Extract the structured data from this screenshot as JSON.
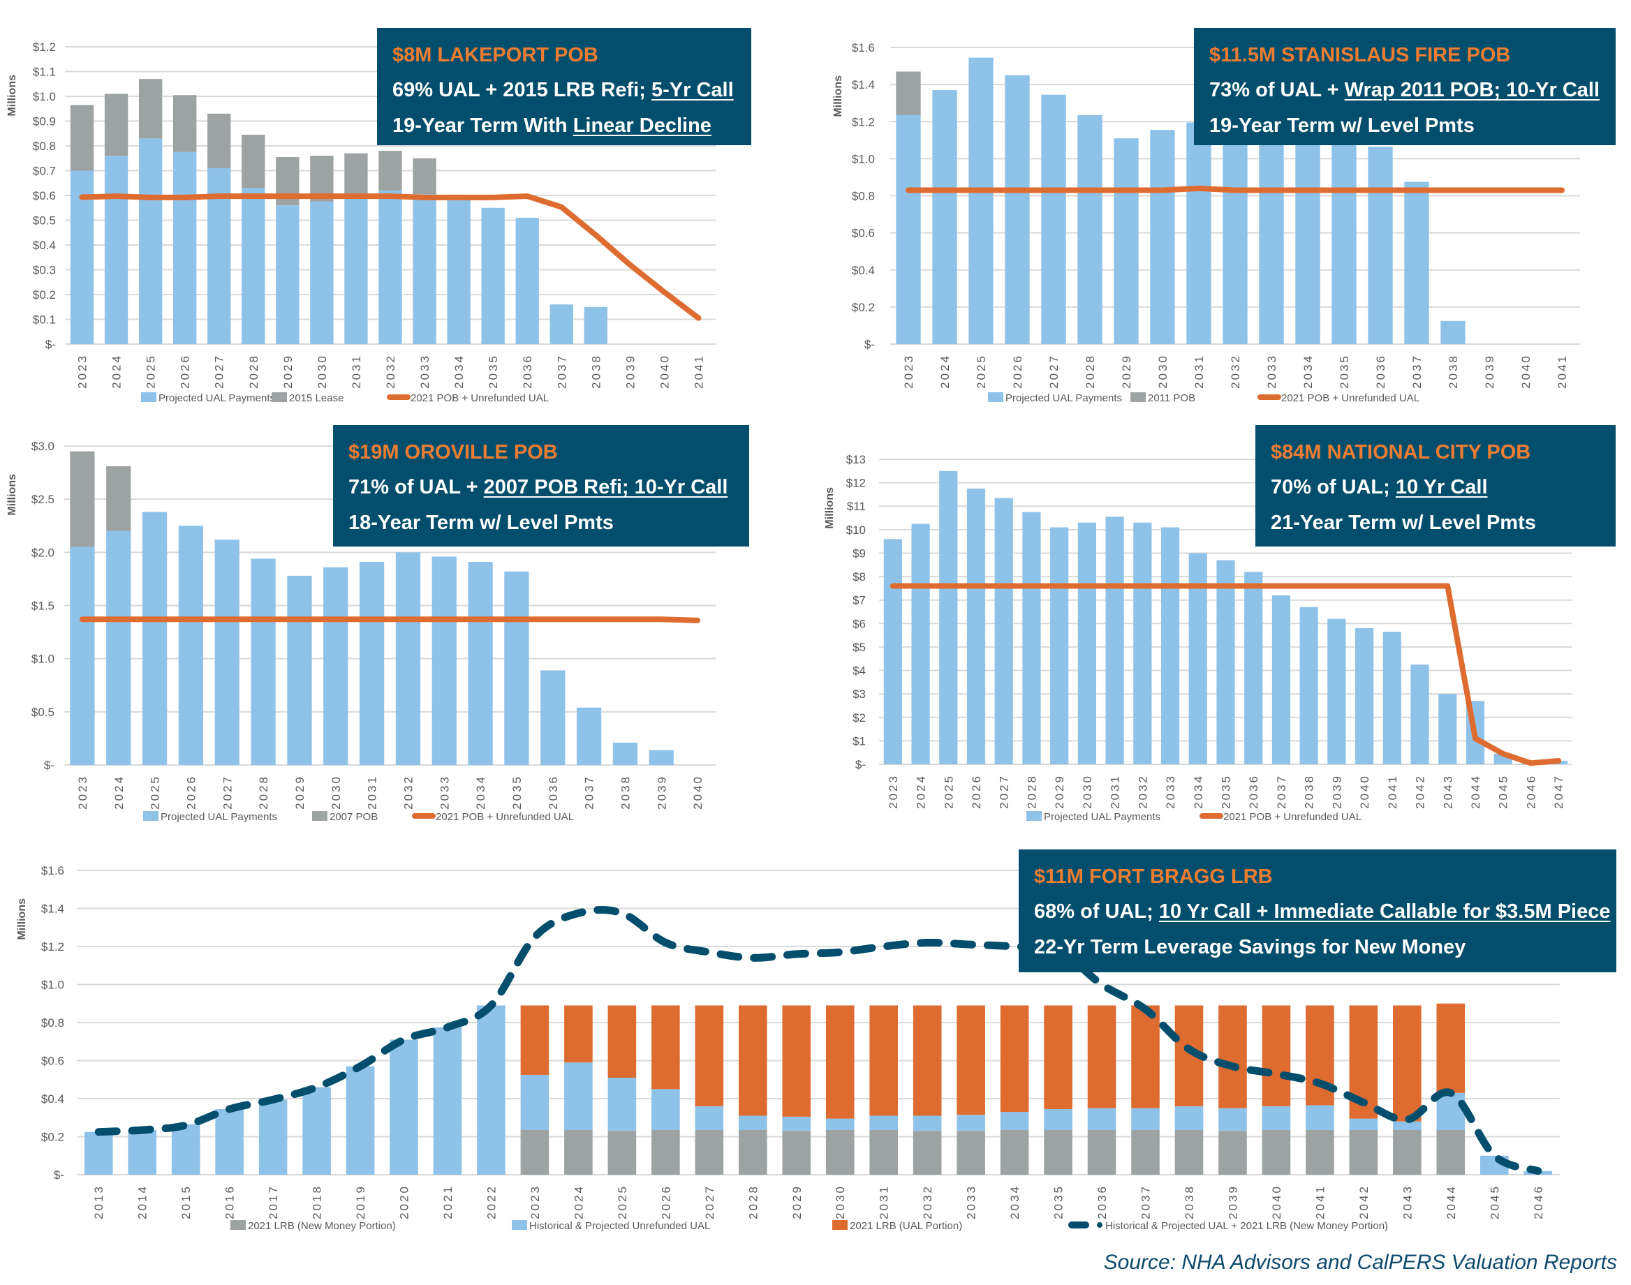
{
  "colors": {
    "blue_bar": "#8fc2e9",
    "gray_bar": "#9da3a3",
    "orange": "#de6c30",
    "navy": "#034e6c",
    "box_title": "#ee7d31"
  },
  "source": "Source: NHA Advisors and CalPERS Valuation Reports",
  "boxes": {
    "lakeport": {
      "title": "$8M LAKEPORT POB",
      "line1_a": "69% UAL + 2015 LRB Refi; ",
      "line1_u": "5-Yr Call",
      "line2_a": "19-Year Term With ",
      "line2_u": "Linear Decline"
    },
    "stanislaus": {
      "title": "$11.5M STANISLAUS FIRE POB",
      "line1_a": "73% of UAL + ",
      "line1_u": "Wrap 2011 POB; 10-Yr Call",
      "line2_a": "19-Year Term w/ Level Pmts",
      "line2_u": ""
    },
    "oroville": {
      "title": "$19M OROVILLE POB",
      "line1_a": "71% of UAL + ",
      "line1_u": "2007 POB Refi; 10-Yr Call",
      "line2_a": "18-Year Term w/ Level Pmts",
      "line2_u": ""
    },
    "national_city": {
      "title": "$84M NATIONAL CITY POB",
      "line1_a": "70% of UAL; ",
      "line1_u": "10 Yr Call",
      "line2_a": "21-Year Term w/ Level Pmts",
      "line2_u": ""
    },
    "fort_bragg": {
      "title": "$11M FORT BRAGG LRB",
      "line1_a": "68% of UAL; ",
      "line1_u": "10 Yr Call + Immediate Callable for $3.5M Piece",
      "line2_a": "22-Yr Term Leverage Savings for New Money",
      "line2_u": ""
    }
  },
  "chart_data": [
    {
      "id": "lakeport",
      "type": "bar",
      "stacked": true,
      "title": "$8M LAKEPORT POB",
      "ylabel": "Millions",
      "ylim": [
        0,
        1.2
      ],
      "yticks": [
        0,
        0.1,
        0.2,
        0.3,
        0.4,
        0.5,
        0.6,
        0.7,
        0.8,
        0.9,
        1.0,
        1.1,
        1.2
      ],
      "ytick_labels": [
        "$-",
        "$0.1",
        "$0.2",
        "$0.3",
        "$0.4",
        "$0.5",
        "$0.6",
        "$0.7",
        "$0.8",
        "$0.9",
        "$1.0",
        "$1.1",
        "$1.2"
      ],
      "categories": [
        "2023",
        "2024",
        "2025",
        "2026",
        "2027",
        "2028",
        "2029",
        "2030",
        "2031",
        "2032",
        "2033",
        "2034",
        "2035",
        "2036",
        "2037",
        "2038",
        "2039",
        "2040",
        "2041"
      ],
      "series": [
        {
          "name": "Projected UAL Payments",
          "kind": "bar",
          "color": "blue",
          "values": [
            0.7,
            0.76,
            0.83,
            0.775,
            0.71,
            0.63,
            0.56,
            0.575,
            0.6,
            0.62,
            0.605,
            0.59,
            0.55,
            0.51,
            0.16,
            0.15,
            0,
            0,
            0
          ]
        },
        {
          "name": "2015 Lease",
          "kind": "bar",
          "color": "gray",
          "values": [
            0.265,
            0.25,
            0.24,
            0.23,
            0.22,
            0.215,
            0.195,
            0.185,
            0.17,
            0.16,
            0.145,
            0,
            0,
            0,
            0,
            0,
            0,
            0,
            0
          ]
        },
        {
          "name": "2021 POB + Unrefunded UAL",
          "kind": "line",
          "color": "orange",
          "values": [
            0.593,
            0.597,
            0.592,
            0.592,
            0.597,
            0.597,
            0.597,
            0.597,
            0.597,
            0.597,
            0.592,
            0.592,
            0.592,
            0.597,
            0.553,
            0.44,
            0.32,
            0.21,
            0.105
          ]
        }
      ],
      "legend_position": "bottom"
    },
    {
      "id": "stanislaus",
      "type": "bar",
      "stacked": true,
      "title": "$11.5M STANISLAUS FIRE POB",
      "ylabel": "Millions",
      "ylim": [
        0,
        1.6
      ],
      "yticks": [
        0,
        0.2,
        0.4,
        0.6,
        0.8,
        1.0,
        1.2,
        1.4,
        1.6
      ],
      "ytick_labels": [
        "$-",
        "$0.2",
        "$0.4",
        "$0.6",
        "$0.8",
        "$1.0",
        "$1.2",
        "$1.4",
        "$1.6"
      ],
      "categories": [
        "2023",
        "2024",
        "2025",
        "2026",
        "2027",
        "2028",
        "2029",
        "2030",
        "2031",
        "2032",
        "2033",
        "2034",
        "2035",
        "2036",
        "2037",
        "2038",
        "2039",
        "2040",
        "2041"
      ],
      "series": [
        {
          "name": "Projected UAL Payments",
          "kind": "bar",
          "color": "blue",
          "values": [
            1.235,
            1.37,
            1.545,
            1.45,
            1.345,
            1.235,
            1.11,
            1.155,
            1.195,
            1.18,
            1.18,
            1.18,
            1.18,
            1.065,
            0.875,
            0.125,
            0,
            0,
            0
          ]
        },
        {
          "name": "2011 POB",
          "kind": "bar",
          "color": "gray",
          "values": [
            0.235,
            0,
            0,
            0,
            0,
            0,
            0,
            0,
            0,
            0,
            0,
            0,
            0,
            0,
            0,
            0,
            0,
            0,
            0
          ]
        },
        {
          "name": "2021 POB + Unrefunded UAL",
          "kind": "line",
          "color": "orange",
          "values": [
            0.83,
            0.83,
            0.83,
            0.83,
            0.83,
            0.83,
            0.83,
            0.83,
            0.84,
            0.83,
            0.83,
            0.83,
            0.83,
            0.83,
            0.83,
            0.83,
            0.83,
            0.83,
            0.83
          ]
        }
      ],
      "legend_position": "bottom"
    },
    {
      "id": "oroville",
      "type": "bar",
      "stacked": true,
      "title": "$19M OROVILLE POB",
      "ylabel": "Millions",
      "ylim": [
        0,
        3.0
      ],
      "yticks": [
        0,
        0.5,
        1.0,
        1.5,
        2.0,
        2.5,
        3.0
      ],
      "ytick_labels": [
        "$-",
        "$0.5",
        "$1.0",
        "$1.5",
        "$2.0",
        "$2.5",
        "$3.0"
      ],
      "categories": [
        "2023",
        "2024",
        "2025",
        "2026",
        "2027",
        "2028",
        "2029",
        "2030",
        "2031",
        "2032",
        "2033",
        "2034",
        "2035",
        "2036",
        "2037",
        "2038",
        "2039",
        "2040"
      ],
      "series": [
        {
          "name": "Projected UAL Payments",
          "kind": "bar",
          "color": "blue",
          "values": [
            2.05,
            2.2,
            2.38,
            2.25,
            2.12,
            1.94,
            1.78,
            1.86,
            1.91,
            2.0,
            1.96,
            1.91,
            1.82,
            0.89,
            0.54,
            0.21,
            0.14,
            0
          ]
        },
        {
          "name": "2007 POB",
          "kind": "bar",
          "color": "gray",
          "values": [
            0.9,
            0.61,
            0,
            0,
            0,
            0,
            0,
            0,
            0,
            0,
            0,
            0,
            0,
            0,
            0,
            0,
            0,
            0
          ]
        },
        {
          "name": "2021 POB + Unrefunded UAL",
          "kind": "line",
          "color": "orange",
          "values": [
            1.37,
            1.37,
            1.37,
            1.37,
            1.37,
            1.37,
            1.37,
            1.37,
            1.37,
            1.37,
            1.37,
            1.37,
            1.37,
            1.37,
            1.37,
            1.37,
            1.37,
            1.36
          ]
        }
      ],
      "legend_position": "bottom"
    },
    {
      "id": "national_city",
      "type": "bar",
      "stacked": false,
      "title": "$84M NATIONAL CITY POB",
      "ylabel": "Millions",
      "ylim": [
        0,
        13
      ],
      "yticks": [
        0,
        1,
        2,
        3,
        4,
        5,
        6,
        7,
        8,
        9,
        10,
        11,
        12,
        13
      ],
      "ytick_labels": [
        "$-",
        "$1",
        "$2",
        "$3",
        "$4",
        "$5",
        "$6",
        "$7",
        "$8",
        "$9",
        "$10",
        "$11",
        "$12",
        "$13"
      ],
      "categories": [
        "2023",
        "2024",
        "2025",
        "2026",
        "2027",
        "2028",
        "2029",
        "2030",
        "2031",
        "2032",
        "2033",
        "2034",
        "2035",
        "2036",
        "2037",
        "2038",
        "2039",
        "2040",
        "2041",
        "2042",
        "2043",
        "2044",
        "2045",
        "2046",
        "2047"
      ],
      "series": [
        {
          "name": "Projected UAL Payments",
          "kind": "bar",
          "color": "blue",
          "values": [
            9.6,
            10.25,
            12.5,
            11.75,
            11.35,
            10.75,
            10.1,
            10.3,
            10.55,
            10.3,
            10.1,
            9.0,
            8.7,
            8.2,
            7.2,
            6.7,
            6.2,
            5.8,
            5.65,
            4.25,
            3.0,
            2.7,
            0.45,
            0.1,
            0.15
          ]
        },
        {
          "name": "2021 POB + Unrefunded UAL",
          "kind": "line",
          "color": "orange",
          "values": [
            7.6,
            7.6,
            7.6,
            7.6,
            7.6,
            7.6,
            7.6,
            7.6,
            7.6,
            7.6,
            7.6,
            7.6,
            7.6,
            7.6,
            7.6,
            7.6,
            7.6,
            7.6,
            7.6,
            7.6,
            7.6,
            1.1,
            0.45,
            0.05,
            0.15
          ]
        }
      ],
      "legend_position": "bottom"
    },
    {
      "id": "fort_bragg",
      "type": "bar",
      "stacked": true,
      "title": "$11M FORT BRAGG LRB",
      "ylabel": "Millions",
      "ylim": [
        0,
        1.6
      ],
      "yticks": [
        0,
        0.2,
        0.4,
        0.6,
        0.8,
        1.0,
        1.2,
        1.4,
        1.6
      ],
      "ytick_labels": [
        "$-",
        "$0.2",
        "$0.4",
        "$0.6",
        "$0.8",
        "$1.0",
        "$1.2",
        "$1.4",
        "$1.6"
      ],
      "categories": [
        "2013",
        "2014",
        "2015",
        "2016",
        "2017",
        "2018",
        "2019",
        "2020",
        "2021",
        "2022",
        "2023",
        "2024",
        "2025",
        "2026",
        "2027",
        "2028",
        "2029",
        "2030",
        "2031",
        "2032",
        "2033",
        "2034",
        "2035",
        "2036",
        "2037",
        "2038",
        "2039",
        "2040",
        "2041",
        "2042",
        "2043",
        "2044",
        "2045",
        "2046"
      ],
      "series": [
        {
          "name": "2021 LRB (New Money Portion)",
          "kind": "bar",
          "color": "gray",
          "values": [
            0,
            0,
            0,
            0,
            0,
            0,
            0,
            0,
            0,
            0,
            0.235,
            0.235,
            0.23,
            0.235,
            0.235,
            0.235,
            0.23,
            0.235,
            0.235,
            0.23,
            0.23,
            0.235,
            0.235,
            0.235,
            0.235,
            0.235,
            0.23,
            0.235,
            0.235,
            0.235,
            0.235,
            0.235,
            0,
            0
          ]
        },
        {
          "name": "Historical & Projected Unrefunded UAL",
          "kind": "bar",
          "color": "blue",
          "values": [
            0.225,
            0.235,
            0.265,
            0.345,
            0.395,
            0.46,
            0.57,
            0.71,
            0.775,
            0.89,
            0.29,
            0.355,
            0.28,
            0.215,
            0.125,
            0.075,
            0.075,
            0.06,
            0.075,
            0.08,
            0.085,
            0.095,
            0.11,
            0.115,
            0.115,
            0.125,
            0.12,
            0.125,
            0.13,
            0.06,
            0.045,
            0.195,
            0.1,
            0.02
          ]
        },
        {
          "name": "2021 LRB (UAL Portion)",
          "kind": "bar",
          "color": "orange",
          "values": [
            0,
            0,
            0,
            0,
            0,
            0,
            0,
            0,
            0,
            0,
            0.365,
            0.3,
            0.38,
            0.44,
            0.53,
            0.58,
            0.585,
            0.595,
            0.58,
            0.58,
            0.575,
            0.56,
            0.545,
            0.54,
            0.54,
            0.53,
            0.54,
            0.53,
            0.525,
            0.595,
            0.61,
            0.47,
            0,
            0
          ]
        },
        {
          "name": "Historical & Projected UAL + 2021 LRB (New Money Portion)",
          "kind": "dashed-line",
          "color": "navy",
          "values": [
            0.225,
            0.235,
            0.26,
            0.345,
            0.395,
            0.46,
            0.57,
            0.71,
            0.775,
            0.89,
            1.25,
            1.375,
            1.375,
            1.22,
            1.17,
            1.14,
            1.16,
            1.17,
            1.2,
            1.22,
            1.21,
            1.2,
            1.18,
            1.0,
            0.87,
            0.66,
            0.57,
            0.53,
            0.48,
            0.38,
            0.29,
            0.43,
            0.1,
            0.02
          ]
        }
      ],
      "legend_position": "bottom"
    }
  ]
}
